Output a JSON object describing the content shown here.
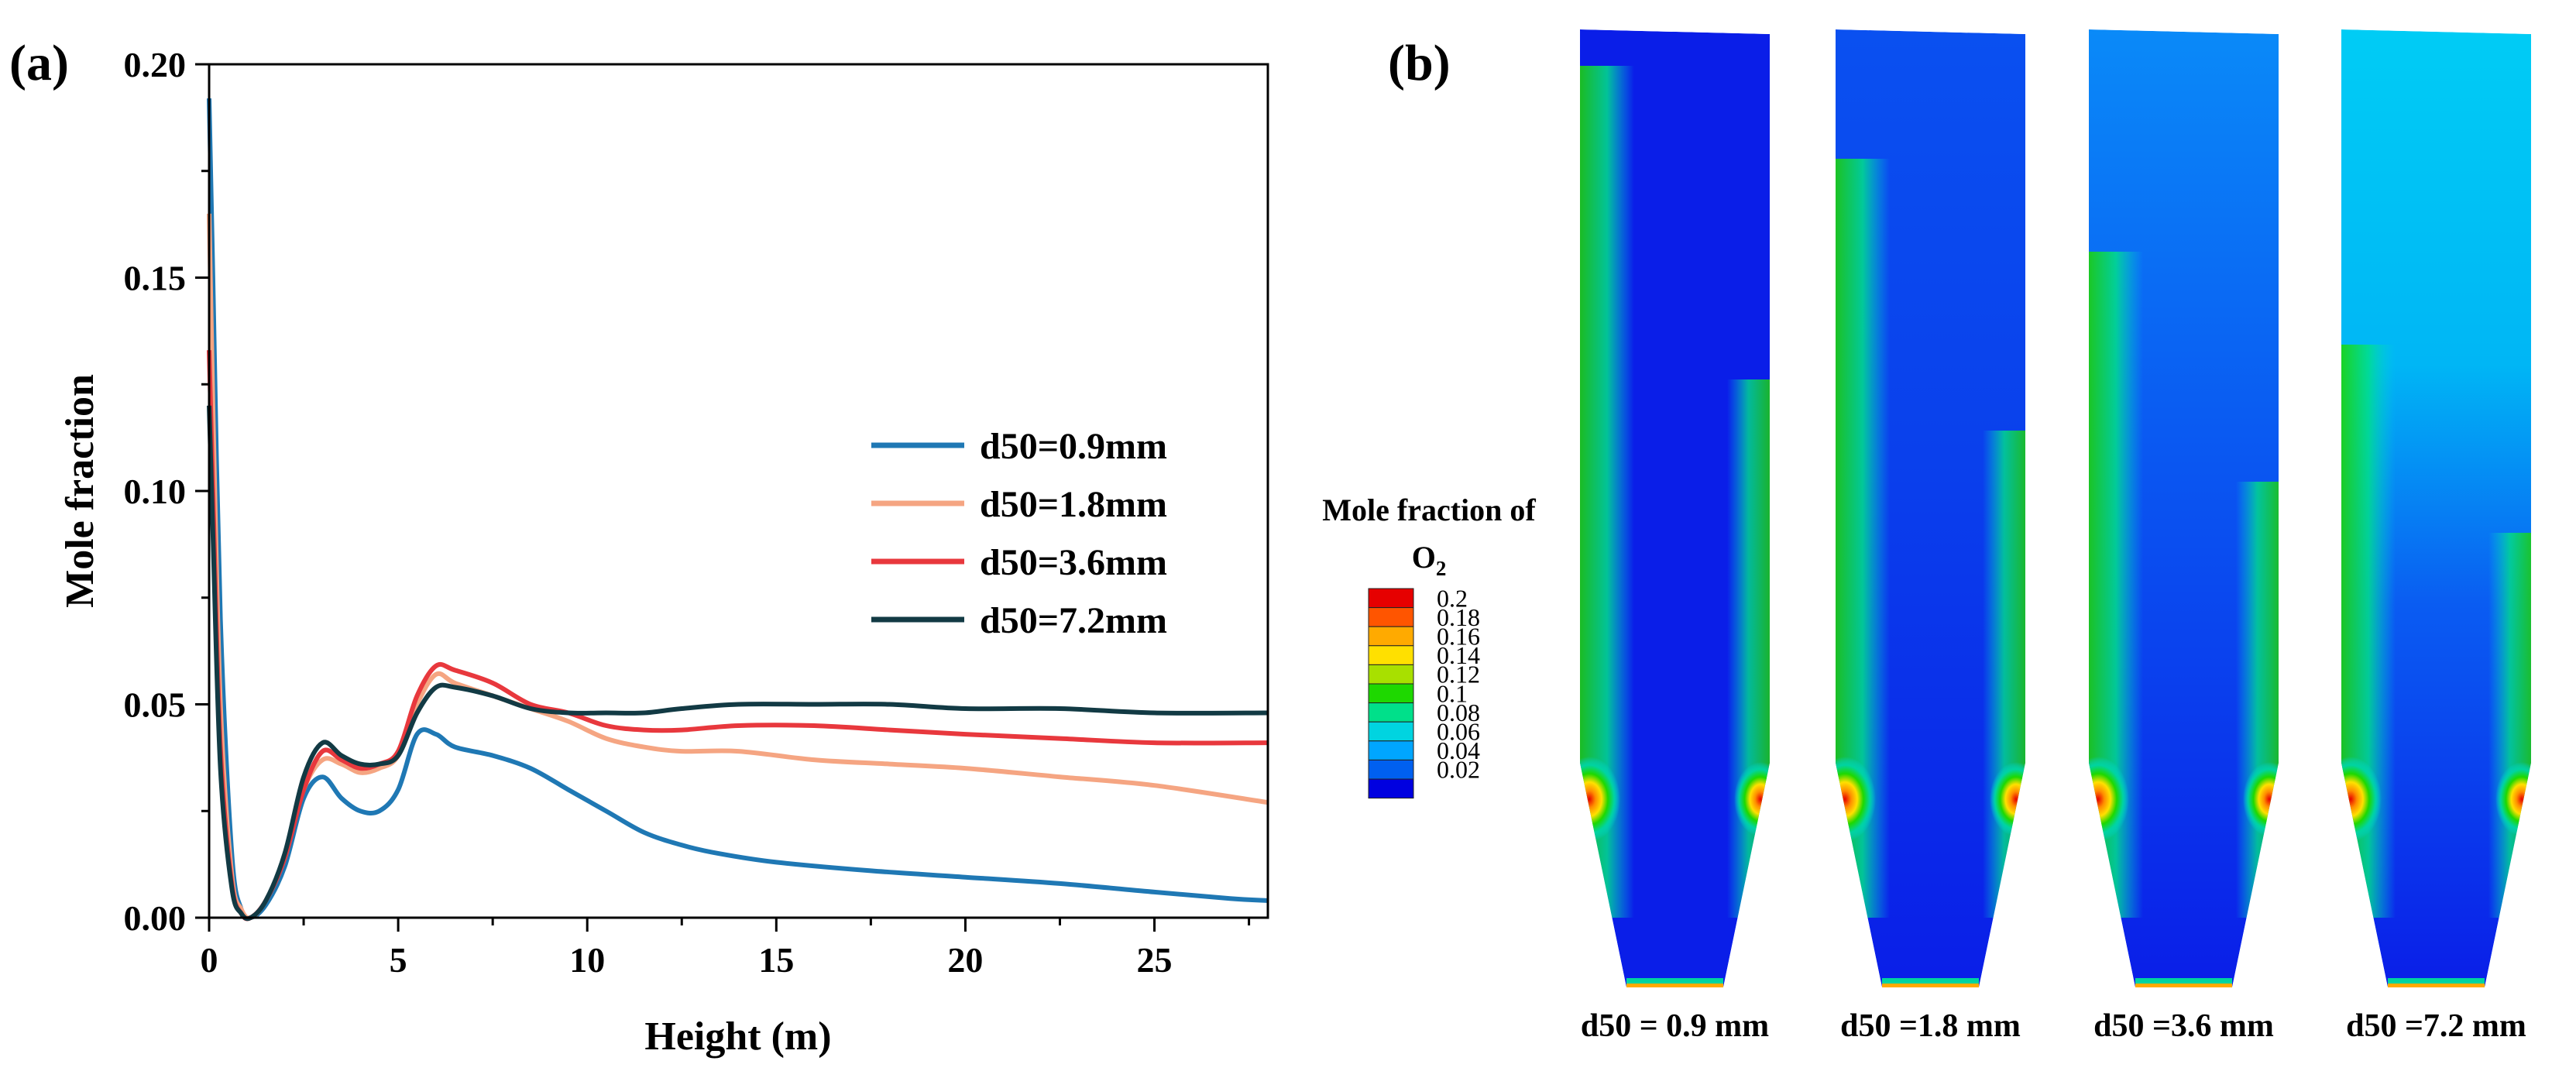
{
  "panel_a_label": "(a)",
  "panel_b_label": "(b)",
  "chart_data": {
    "type": "line",
    "title": "",
    "xlabel": "Height (m)",
    "ylabel": "Mole fraction",
    "xlim": [
      0,
      28
    ],
    "ylim": [
      0,
      0.2
    ],
    "xticks": [
      0,
      5,
      10,
      15,
      20,
      25
    ],
    "yticks": [
      0.0,
      0.05,
      0.1,
      0.15,
      0.2
    ],
    "xtick_labels": [
      "0",
      "5",
      "10",
      "15",
      "20",
      "25"
    ],
    "ytick_labels": [
      "0.00",
      "0.05",
      "0.10",
      "0.15",
      "0.20"
    ],
    "grid": false,
    "legend": "right",
    "series": [
      {
        "name": "d50=0.9mm",
        "color": "#1f78b4",
        "x": [
          0,
          0.1,
          0.3,
          0.6,
          0.85,
          1.1,
          1.5,
          2.0,
          2.5,
          3.0,
          3.5,
          4.0,
          4.5,
          5.0,
          5.5,
          6.0,
          6.5,
          7.5,
          8.5,
          9.5,
          10.5,
          11.5,
          12.5,
          13.5,
          15,
          17.5,
          20,
          22.5,
          25,
          27,
          28
        ],
        "y": [
          0.192,
          0.15,
          0.07,
          0.015,
          0.002,
          0.0,
          0.003,
          0.012,
          0.028,
          0.033,
          0.028,
          0.025,
          0.025,
          0.03,
          0.043,
          0.043,
          0.04,
          0.038,
          0.035,
          0.03,
          0.025,
          0.02,
          0.017,
          0.015,
          0.013,
          0.011,
          0.0095,
          0.008,
          0.006,
          0.0045,
          0.004
        ]
      },
      {
        "name": "d50=1.8mm",
        "color": "#f5a582",
        "x": [
          0,
          0.1,
          0.3,
          0.6,
          0.85,
          1.1,
          1.5,
          2.0,
          2.5,
          3.0,
          3.5,
          4.0,
          4.5,
          5.0,
          5.5,
          6.0,
          6.5,
          7.5,
          8.5,
          9.5,
          10.5,
          11.5,
          12.5,
          14,
          16,
          18,
          20,
          22.5,
          25,
          28
        ],
        "y": [
          0.165,
          0.12,
          0.05,
          0.01,
          0.002,
          0.0,
          0.004,
          0.014,
          0.03,
          0.037,
          0.036,
          0.034,
          0.035,
          0.038,
          0.05,
          0.057,
          0.055,
          0.052,
          0.049,
          0.046,
          0.042,
          0.04,
          0.039,
          0.039,
          0.037,
          0.036,
          0.035,
          0.033,
          0.031,
          0.027
        ]
      },
      {
        "name": "d50=3.6mm",
        "color": "#e8383d",
        "x": [
          0,
          0.1,
          0.3,
          0.6,
          0.85,
          1.1,
          1.5,
          2.0,
          2.5,
          3.0,
          3.5,
          4.0,
          4.5,
          5.0,
          5.5,
          6.0,
          6.5,
          7.5,
          8.5,
          9.5,
          10.5,
          11.5,
          12.5,
          14,
          16,
          18,
          20,
          22.5,
          25,
          28
        ],
        "y": [
          0.133,
          0.1,
          0.04,
          0.008,
          0.001,
          0.0,
          0.004,
          0.014,
          0.03,
          0.039,
          0.037,
          0.035,
          0.036,
          0.039,
          0.052,
          0.059,
          0.058,
          0.055,
          0.05,
          0.048,
          0.045,
          0.044,
          0.044,
          0.045,
          0.045,
          0.044,
          0.043,
          0.042,
          0.041,
          0.041
        ]
      },
      {
        "name": "d50=7.2mm",
        "color": "#123a44",
        "x": [
          0,
          0.1,
          0.3,
          0.6,
          0.85,
          1.1,
          1.5,
          2.0,
          2.5,
          3.0,
          3.5,
          4.0,
          4.5,
          5.0,
          5.5,
          6.0,
          6.5,
          7.5,
          8.5,
          9.5,
          10.5,
          11.5,
          12.5,
          14,
          16,
          18,
          20,
          22.5,
          25,
          28
        ],
        "y": [
          0.12,
          0.09,
          0.035,
          0.007,
          0.001,
          0.0,
          0.004,
          0.015,
          0.033,
          0.041,
          0.038,
          0.036,
          0.036,
          0.038,
          0.048,
          0.054,
          0.054,
          0.052,
          0.049,
          0.048,
          0.048,
          0.048,
          0.049,
          0.05,
          0.05,
          0.05,
          0.049,
          0.049,
          0.048,
          0.048
        ]
      }
    ]
  },
  "contour": {
    "title_line1": "Mole fraction of",
    "title_line2": "O",
    "title_subscript": "2",
    "colorbar": [
      {
        "label": "0.2",
        "color": "#e60000"
      },
      {
        "label": "0.18",
        "color": "#ff5500"
      },
      {
        "label": "0.16",
        "color": "#ffaa00"
      },
      {
        "label": "0.14",
        "color": "#ffe000"
      },
      {
        "label": "0.12",
        "color": "#a8e000"
      },
      {
        "label": "0.1",
        "color": "#1ed800"
      },
      {
        "label": "0.08",
        "color": "#00e08a"
      },
      {
        "label": "0.06",
        "color": "#00d4e0"
      },
      {
        "label": "0.04",
        "color": "#00a6ff"
      },
      {
        "label": "0.02",
        "color": "#0060f0"
      },
      {
        "label": "",
        "color": "#0000e0"
      }
    ],
    "cases": [
      {
        "label": "d50 = 0.9 mm",
        "top_color": "#0a1ee8"
      },
      {
        "label": "d50 =1.8 mm",
        "top_color": "#0a50f0"
      },
      {
        "label": "d50 =3.6 mm",
        "top_color": "#0a8af8"
      },
      {
        "label": "d50 =7.2 mm",
        "top_color": "#00ccf5"
      }
    ]
  }
}
